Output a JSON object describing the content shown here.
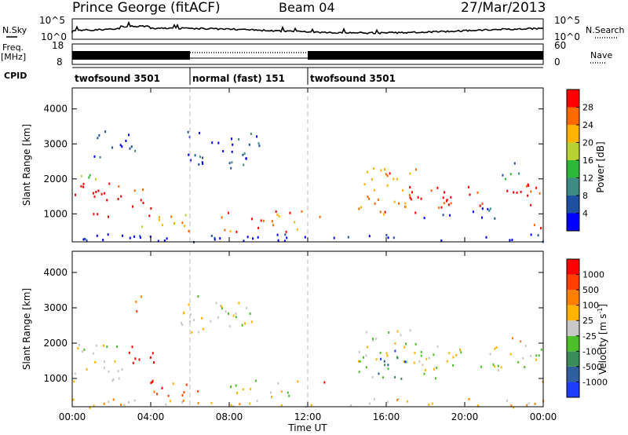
{
  "header": {
    "title": "Prince George (fitACF)",
    "beam": "Beam 04",
    "date": "27/Mar/2013"
  },
  "left_labels": {
    "nsky": "N.Sky",
    "freq_line1": "Freq.",
    "freq_line2": "[MHz]",
    "cpid": "CPID"
  },
  "right_labels": {
    "nsearch": "N.Search",
    "nave": "Nave"
  },
  "chart_data": [
    {
      "type": "line",
      "panel": "noise",
      "series": [
        {
          "name": "N.Sky"
        },
        {
          "name": "N.Search"
        }
      ],
      "left_ticks": [
        "10^5",
        "10^0"
      ],
      "right_ticks": [
        "10^5",
        "10^0"
      ],
      "x_range": [
        "00:00",
        "00:00"
      ]
    },
    {
      "type": "bar",
      "panel": "frequency-nave",
      "left_ticks": [
        "18",
        "8"
      ],
      "right_ticks": [
        "60",
        "0"
      ],
      "segments": [
        {
          "start_h": 0,
          "end_h": 6,
          "style": "solid"
        },
        {
          "start_h": 6,
          "end_h": 12,
          "style": "dotted"
        },
        {
          "start_h": 12,
          "end_h": 24,
          "style": "solid"
        }
      ]
    },
    {
      "type": "table",
      "panel": "cpid",
      "segments": [
        {
          "label": "twofsound 3501",
          "start_h": 0,
          "end_h": 6
        },
        {
          "label": "normal (fast) 151",
          "start_h": 6,
          "end_h": 12
        },
        {
          "label": "twofsound 3501",
          "start_h": 12,
          "end_h": 24
        }
      ]
    },
    {
      "type": "heatmap",
      "panel": "power",
      "xlabel": "",
      "ylabel": "Slant Range [km]",
      "xlim": [
        0,
        24
      ],
      "ylim": [
        200,
        4600
      ],
      "yticks": [
        1000,
        2000,
        3000,
        4000
      ],
      "colorbar": {
        "label": "Power [dB]",
        "ticks": [
          "4",
          "8",
          "12",
          "16",
          "20",
          "24",
          "28"
        ],
        "colors": [
          "#0000ff",
          "#1f4fa0",
          "#3e8b84",
          "#2db83a",
          "#b8d233",
          "#ffb300",
          "#ff6a00",
          "#ff0000"
        ]
      },
      "scatter_regions": [
        {
          "t0": 0.0,
          "t1": 2.5,
          "r0": 900,
          "r1": 1900,
          "level": 0.95
        },
        {
          "t0": 0.0,
          "t1": 2.0,
          "r0": 1900,
          "r1": 2200,
          "level": 0.45
        },
        {
          "t0": 1.0,
          "t1": 3.2,
          "r0": 2600,
          "r1": 3400,
          "level": 0.15
        },
        {
          "t0": 3.0,
          "t1": 4.0,
          "r0": 900,
          "r1": 1900,
          "level": 0.85
        },
        {
          "t0": 3.5,
          "t1": 6.5,
          "r0": 500,
          "r1": 1000,
          "level": 0.7
        },
        {
          "t0": 5.5,
          "t1": 9.5,
          "r0": 2300,
          "r1": 3400,
          "level": 0.15
        },
        {
          "t0": 7.5,
          "t1": 12.0,
          "r0": 500,
          "r1": 1100,
          "level": 0.85
        },
        {
          "t0": 12.5,
          "t1": 12.9,
          "r0": 800,
          "r1": 1100,
          "level": 0.7
        },
        {
          "t0": 14.5,
          "t1": 17.5,
          "r0": 900,
          "r1": 2400,
          "level": 0.8
        },
        {
          "t0": 17.0,
          "t1": 24.0,
          "r0": 1200,
          "r1": 1900,
          "level": 0.9
        },
        {
          "t0": 17.0,
          "t1": 21.5,
          "r0": 900,
          "r1": 1200,
          "level": 0.15
        },
        {
          "t0": 21.8,
          "t1": 22.8,
          "r0": 1900,
          "r1": 2600,
          "level": 0.35
        },
        {
          "t0": 23.4,
          "t1": 24.0,
          "r0": 600,
          "r1": 1100,
          "level": 0.8
        },
        {
          "t0": 0.0,
          "t1": 24.0,
          "r0": 200,
          "r1": 450,
          "level": 0.05
        }
      ]
    },
    {
      "type": "heatmap",
      "panel": "velocity",
      "xlabel": "Time UT",
      "ylabel": "Slant Range [km]",
      "xlim": [
        0,
        24
      ],
      "ylim": [
        200,
        4600
      ],
      "xticks": [
        "00:00",
        "04:00",
        "08:00",
        "12:00",
        "16:00",
        "20:00",
        "00:00"
      ],
      "yticks": [
        1000,
        2000,
        3000,
        4000
      ],
      "colorbar": {
        "label": "Velocity [m s^-1]",
        "ticks": [
          "1000",
          "500",
          "100",
          "25",
          "-25",
          "-100",
          "-500",
          "-1000"
        ],
        "colors": [
          "#1e3cff",
          "#2f5f9e",
          "#3c8c5a",
          "#4dbf2a",
          "#c8c8c8",
          "#ffb300",
          "#ff8000",
          "#ff4000",
          "#ff0000"
        ]
      },
      "scatter_regions": [
        {
          "t0": 0.0,
          "t1": 2.8,
          "r0": 900,
          "r1": 2000,
          "level": 0.5
        },
        {
          "t0": 2.8,
          "t1": 4.2,
          "r0": 900,
          "r1": 2000,
          "level": 0.95
        },
        {
          "t0": 2.8,
          "t1": 3.6,
          "r0": 2900,
          "r1": 3500,
          "level": 0.8
        },
        {
          "t0": 3.8,
          "t1": 6.5,
          "r0": 500,
          "r1": 950,
          "level": 0.78
        },
        {
          "t0": 5.5,
          "t1": 9.5,
          "r0": 2300,
          "r1": 3400,
          "level": 0.5
        },
        {
          "t0": 8.0,
          "t1": 11.5,
          "r0": 500,
          "r1": 1000,
          "level": 0.5
        },
        {
          "t0": 12.3,
          "t1": 12.9,
          "r0": 800,
          "r1": 1050,
          "level": 0.78
        },
        {
          "t0": 14.5,
          "t1": 17.5,
          "r0": 1000,
          "r1": 2500,
          "level": 0.5
        },
        {
          "t0": 15.5,
          "t1": 17.0,
          "r0": 1000,
          "r1": 1900,
          "level": 0.15
        },
        {
          "t0": 17.5,
          "t1": 24.0,
          "r0": 1200,
          "r1": 2000,
          "level": 0.5
        },
        {
          "t0": 17.5,
          "t1": 18.5,
          "r0": 1000,
          "r1": 1300,
          "level": 0.3
        },
        {
          "t0": 22.3,
          "t1": 22.9,
          "r0": 1900,
          "r1": 2300,
          "level": 0.8
        },
        {
          "t0": 21.0,
          "t1": 21.6,
          "r0": 1300,
          "r1": 1600,
          "level": 0.3
        },
        {
          "t0": 23.5,
          "t1": 24.0,
          "r0": 600,
          "r1": 1000,
          "level": 0.8
        },
        {
          "t0": 0.0,
          "t1": 24.0,
          "r0": 200,
          "r1": 450,
          "level": 0.6
        }
      ]
    }
  ]
}
